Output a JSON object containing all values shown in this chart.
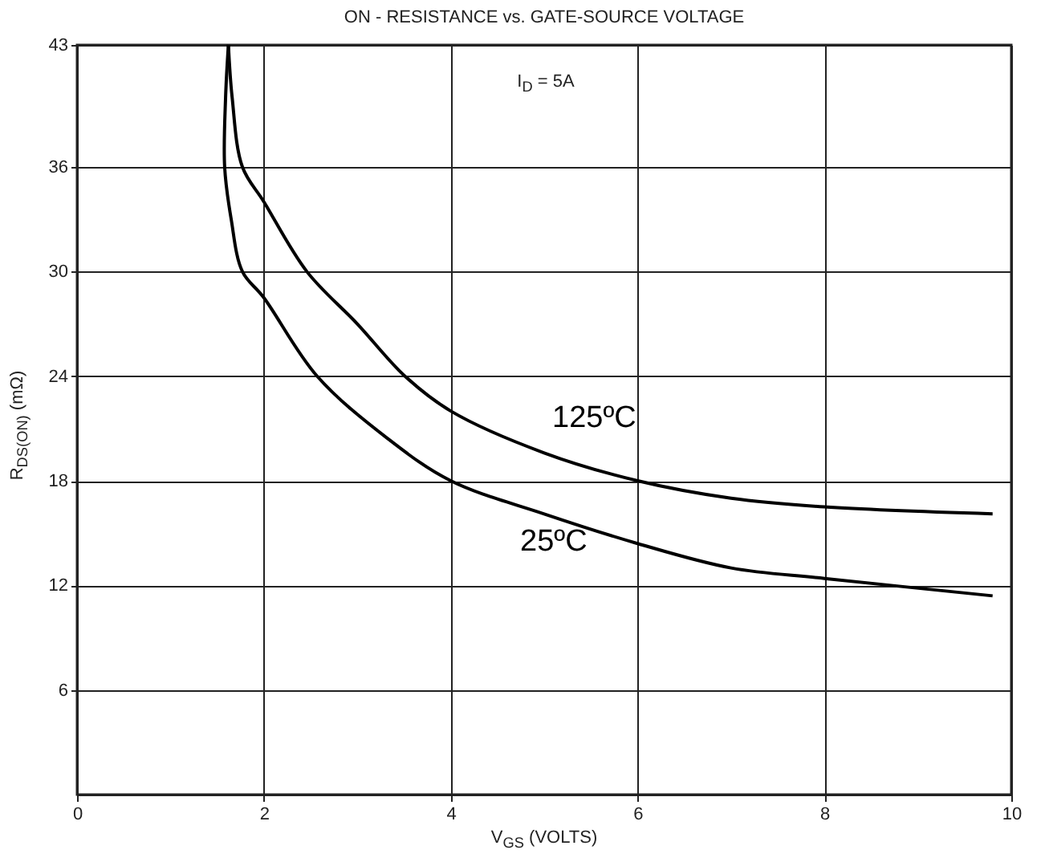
{
  "chart_data": {
    "type": "line",
    "title": "ON - RESISTANCE vs. GATE-SOURCE VOLTAGE",
    "xlabel": "V$_{GS}$  (VOLTS)",
    "ylabel": "R$_{DS(ON)}$ (mΩ)",
    "annotations": [
      "I$_{D}$ = 5A"
    ],
    "xlim": [
      0,
      10
    ],
    "xticks": [
      0,
      2,
      4,
      6,
      8,
      10
    ],
    "ylim": [
      0,
      43
    ],
    "yticks": [
      6,
      12,
      18,
      24,
      30,
      36,
      43
    ],
    "grid": true,
    "series": [
      {
        "name": "125ºC",
        "color": "#000000",
        "x": [
          1.62,
          1.66,
          1.77,
          2,
          2.46,
          3,
          3.51,
          4,
          5,
          6,
          7,
          8,
          9.8
        ],
        "values": [
          43,
          40,
          36,
          34,
          30,
          27,
          24,
          22,
          19.6,
          18,
          17,
          16.5,
          16.1
        ]
      },
      {
        "name": "25ºC",
        "color": "#000000",
        "x": [
          1.62,
          1.59,
          1.58,
          1.65,
          1.77,
          2,
          2.57,
          3.33,
          4,
          5,
          6,
          7,
          8,
          9.8
        ],
        "values": [
          43,
          40,
          36,
          33,
          30,
          28.5,
          24,
          20.4,
          18,
          16.1,
          14.4,
          13,
          12.4,
          11.4
        ]
      }
    ]
  }
}
